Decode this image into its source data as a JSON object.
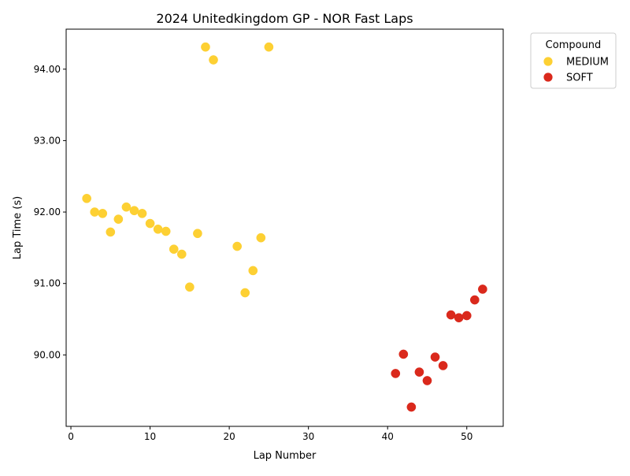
{
  "chart_data": {
    "type": "scatter",
    "title": "2024 Unitedkingdom GP - NOR Fast Laps",
    "xlabel": "Lap Number",
    "ylabel": "Lap Time (s)",
    "xlim": [
      -0.6,
      54.6
    ],
    "ylim": [
      89.0,
      94.56
    ],
    "x_ticks": [
      0,
      10,
      20,
      30,
      40,
      50
    ],
    "y_ticks": [
      90.0,
      91.0,
      92.0,
      93.0,
      94.0
    ],
    "y_tick_format": "2 decimals",
    "grid": false,
    "legend": {
      "title": "Compound",
      "placement": "outside-top-right"
    },
    "series": [
      {
        "name": "MEDIUM",
        "color": "#fdd033",
        "points": [
          {
            "x": 2,
            "y": 92.19
          },
          {
            "x": 3,
            "y": 92.0
          },
          {
            "x": 4,
            "y": 91.98
          },
          {
            "x": 5,
            "y": 91.72
          },
          {
            "x": 6,
            "y": 91.9
          },
          {
            "x": 7,
            "y": 92.07
          },
          {
            "x": 8,
            "y": 92.02
          },
          {
            "x": 9,
            "y": 91.98
          },
          {
            "x": 10,
            "y": 91.84
          },
          {
            "x": 11,
            "y": 91.76
          },
          {
            "x": 12,
            "y": 91.73
          },
          {
            "x": 13,
            "y": 91.48
          },
          {
            "x": 14,
            "y": 91.41
          },
          {
            "x": 15,
            "y": 90.95
          },
          {
            "x": 16,
            "y": 91.7
          },
          {
            "x": 17,
            "y": 94.31
          },
          {
            "x": 18,
            "y": 94.13
          },
          {
            "x": 21,
            "y": 91.52
          },
          {
            "x": 22,
            "y": 90.87
          },
          {
            "x": 23,
            "y": 91.18
          },
          {
            "x": 24,
            "y": 91.64
          },
          {
            "x": 25,
            "y": 94.31
          }
        ]
      },
      {
        "name": "SOFT",
        "color": "#da291c",
        "points": [
          {
            "x": 41,
            "y": 89.74
          },
          {
            "x": 42,
            "y": 90.01
          },
          {
            "x": 43,
            "y": 89.27
          },
          {
            "x": 44,
            "y": 89.76
          },
          {
            "x": 45,
            "y": 89.64
          },
          {
            "x": 46,
            "y": 89.97
          },
          {
            "x": 47,
            "y": 89.85
          },
          {
            "x": 48,
            "y": 90.56
          },
          {
            "x": 49,
            "y": 90.52
          },
          {
            "x": 50,
            "y": 90.55
          },
          {
            "x": 51,
            "y": 90.77
          },
          {
            "x": 52,
            "y": 90.92
          }
        ]
      }
    ]
  }
}
